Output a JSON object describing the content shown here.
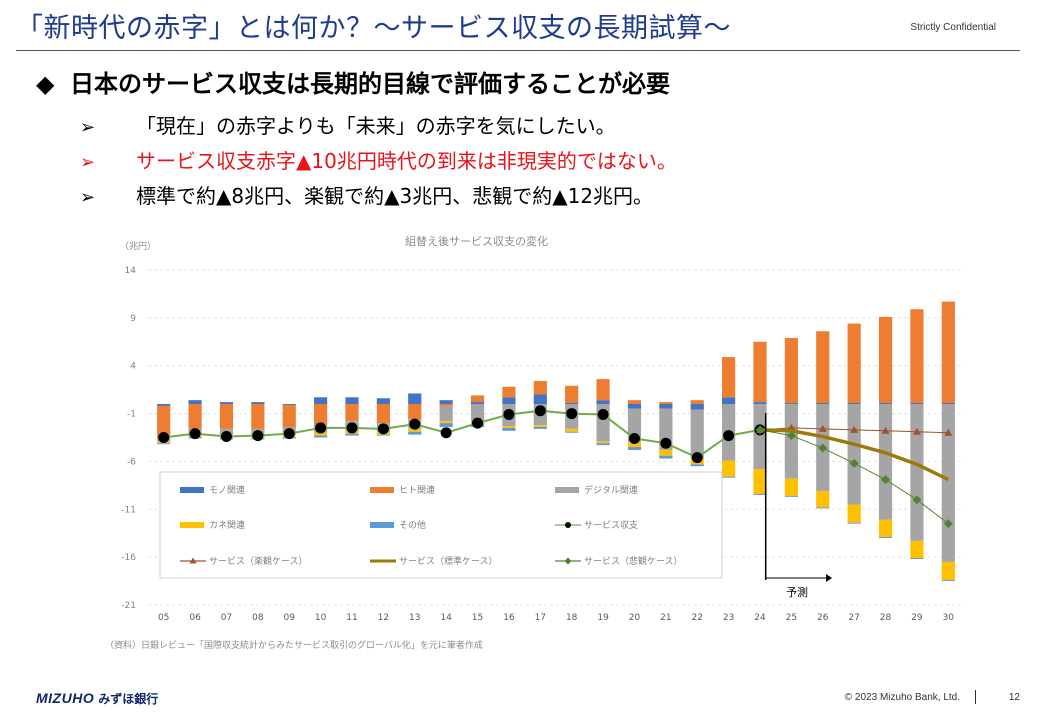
{
  "header": {
    "title": "「新時代の赤字」とは何か？〜サービス収支の長期試算〜",
    "confidential": "Strictly Confidential"
  },
  "main": {
    "heading_icon": "◆",
    "heading": "日本のサービス収支は長期的目線で評価することが必要",
    "bullet_icon": "➢",
    "bullets": [
      "「現在」の赤字よりも「未来」の赤字を気にしたい。",
      "サービス収支赤字▲10兆円時代の到来は非現実的ではない。",
      "標準で約▲8兆円、楽観で約▲3兆円、悲観で約▲12兆円。"
    ],
    "highlight_color": "#e8141b"
  },
  "chart_data": {
    "type": "bar",
    "title": "組替え後サービス収支の変化",
    "unit_label": "（兆円）",
    "source": "（資料）日銀レビュー「国際収支統計からみたサービス取引のグローバル化」を元に筆者作成",
    "forecast_label": "予測",
    "forecast_start": "25",
    "categories": [
      "05",
      "06",
      "07",
      "08",
      "09",
      "10",
      "11",
      "12",
      "13",
      "14",
      "15",
      "16",
      "17",
      "18",
      "19",
      "20",
      "21",
      "22",
      "23",
      "24",
      "25",
      "26",
      "27",
      "28",
      "29",
      "30"
    ],
    "ylim": [
      -21,
      14
    ],
    "yticks": [
      14,
      9,
      4,
      -1,
      -6,
      -11,
      -16,
      -21
    ],
    "bar_series": [
      {
        "name": "モノ関連",
        "color": "#4472c4",
        "values": [
          -0.2,
          0.4,
          0.2,
          0.2,
          -0.1,
          0.7,
          0.7,
          0.6,
          1.1,
          0.4,
          0.2,
          0.7,
          1.0,
          0.1,
          0.4,
          -0.5,
          -0.5,
          -0.6,
          0.7,
          0.2,
          0.1,
          0.1,
          0.1,
          0.1,
          0.1,
          0.1
        ]
      },
      {
        "name": "ヒト関連",
        "color": "#ed7d31",
        "values": [
          -3.2,
          -2.6,
          -2.6,
          -2.6,
          -2.3,
          -2.2,
          -1.8,
          -2.0,
          -1.6,
          -0.2,
          0.7,
          1.1,
          1.4,
          1.8,
          2.2,
          0.4,
          0.2,
          0.4,
          4.2,
          6.3,
          6.8,
          7.5,
          8.3,
          9.0,
          9.8,
          10.6
        ]
      },
      {
        "name": "デジタル関連",
        "color": "#a5a5a5",
        "values": [
          -0.5,
          -0.6,
          -0.7,
          -0.7,
          -0.8,
          -0.8,
          -0.9,
          -0.9,
          -1.0,
          -1.6,
          -1.8,
          -2.3,
          -2.2,
          -2.6,
          -3.9,
          -3.5,
          -4.3,
          -5.0,
          -5.9,
          -6.8,
          -7.8,
          -9.1,
          -10.5,
          -12.1,
          -14.3,
          -16.5
        ]
      },
      {
        "name": "カネ関連",
        "color": "#ffc000",
        "values": [
          -0.2,
          -0.3,
          -0.3,
          -0.3,
          -0.3,
          -0.3,
          -0.4,
          -0.3,
          -0.3,
          -0.2,
          -0.2,
          -0.2,
          -0.2,
          -0.3,
          -0.2,
          -0.5,
          -0.6,
          -0.7,
          -1.7,
          -2.6,
          -1.8,
          -1.7,
          -1.9,
          -1.8,
          -1.8,
          -1.9
        ]
      },
      {
        "name": "その他",
        "color": "#5b9bd5",
        "values": [
          -0.1,
          -0.1,
          -0.1,
          -0.1,
          -0.1,
          -0.2,
          -0.2,
          -0.1,
          -0.3,
          -0.4,
          -0.4,
          -0.3,
          -0.2,
          -0.1,
          -0.2,
          -0.3,
          -0.3,
          -0.2,
          -0.1,
          -0.1,
          -0.1,
          -0.1,
          -0.1,
          -0.1,
          -0.1,
          -0.1
        ]
      }
    ],
    "line_series": [
      {
        "name": "サービス収支",
        "color": "#70ad47",
        "marker": "circle-black",
        "values": [
          -3.5,
          -3.1,
          -3.4,
          -3.3,
          -3.1,
          -2.5,
          -2.5,
          -2.6,
          -2.1,
          -3.0,
          -2.0,
          -1.1,
          -0.7,
          -1.0,
          -1.1,
          -3.6,
          -4.1,
          -5.6,
          -3.3,
          -2.7
        ]
      },
      {
        "name": "サービス（楽観ケース）",
        "color": "#a0522d",
        "marker": "triangle",
        "start_index": 19,
        "values": [
          -2.7,
          -2.5,
          -2.6,
          -2.7,
          -2.8,
          -2.9,
          -3.0
        ]
      },
      {
        "name": "サービス（標準ケース）",
        "color": "#9c7a0a",
        "marker": "none",
        "start_index": 19,
        "values": [
          -2.7,
          -2.8,
          -3.4,
          -4.2,
          -5.1,
          -6.3,
          -7.9
        ]
      },
      {
        "name": "サービス（悲観ケース）",
        "color": "#548235",
        "marker": "diamond",
        "start_index": 19,
        "values": [
          -2.7,
          -3.3,
          -4.6,
          -6.2,
          -7.9,
          -10.0,
          -12.5
        ]
      }
    ]
  },
  "footer": {
    "logo_text": "MIZUHO",
    "bank_name": "みずほ銀行",
    "copyright": "© 2023 Mizuho Bank, Ltd.",
    "page": "12"
  }
}
